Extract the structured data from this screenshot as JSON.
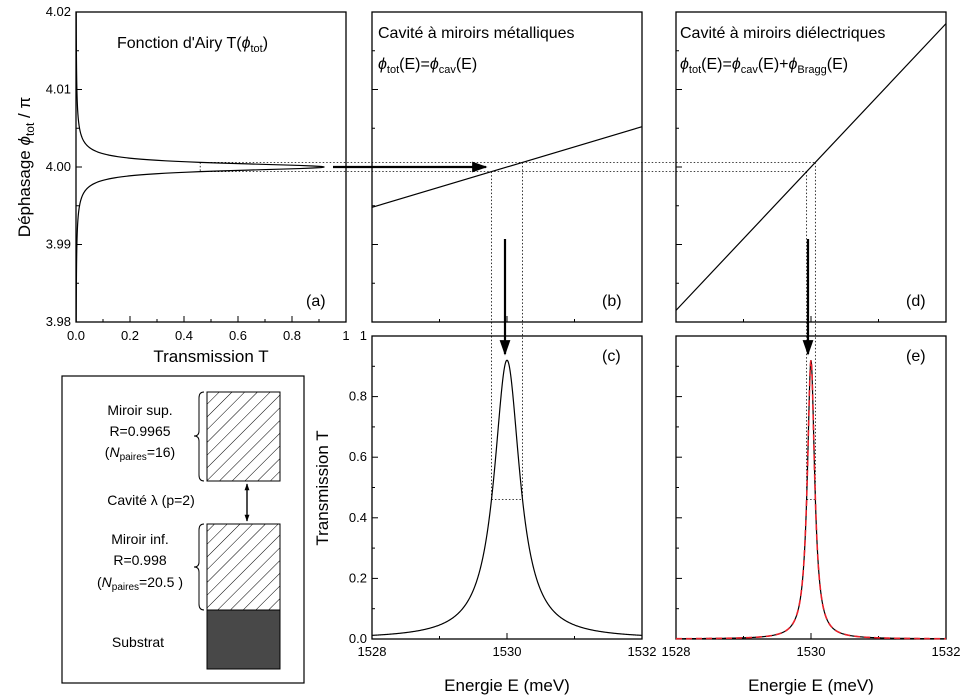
{
  "chart_data": [
    {
      "panel": "a",
      "type": "line",
      "title": "Fonction d'Airy T(ϕtot)",
      "xlabel": "Transmission T",
      "ylabel": "Déphasage ϕtot / π",
      "xlim": [
        0,
        1
      ],
      "ylim": [
        3.98,
        4.02
      ],
      "xticks": [
        "0.0",
        "0.2",
        "0.4",
        "0.6",
        "0.8",
        "1"
      ],
      "yticks": [
        "3.98",
        "3.99",
        "4.00",
        "4.01",
        "4.02"
      ],
      "series": [
        {
          "name": "T(ϕtot)",
          "peak": {
            "phi_over_pi": 4.0,
            "T": 0.92
          },
          "half_width_phi_over_pi": 0.0006
        }
      ]
    },
    {
      "panel": "b",
      "type": "line",
      "title": "Cavité à miroirs métalliques",
      "formula": "ϕtot(E)=ϕcav(E)",
      "xlim": [
        1528,
        1532
      ],
      "ylim": [
        3.98,
        4.02
      ],
      "series": [
        {
          "name": "ϕtot(E)",
          "x": [
            1528,
            1532
          ],
          "y": [
            3.9948,
            4.0052
          ]
        }
      ]
    },
    {
      "panel": "c",
      "type": "line",
      "xlabel": "Energie E (meV)",
      "ylabel": "Transmission T",
      "xlim": [
        1528,
        1532
      ],
      "ylim": [
        0,
        1
      ],
      "xticks": [
        "1528",
        "1530",
        "1532"
      ],
      "yticks": [
        "0.0",
        "0.2",
        "0.4",
        "0.6",
        "0.8",
        "1"
      ],
      "series": [
        {
          "name": "T(E)",
          "peak_x": 1530,
          "peak_T": 0.92,
          "fwhm_meV": 0.46
        }
      ]
    },
    {
      "panel": "d",
      "type": "line",
      "title": "Cavité à miroirs diélectriques",
      "formula": "ϕtot(E)=ϕcav(E)+ϕBragg(E)",
      "xlim": [
        1528,
        1532
      ],
      "ylim": [
        3.98,
        4.02
      ],
      "series": [
        {
          "name": "ϕtot(E)",
          "x": [
            1528,
            1532
          ],
          "y": [
            3.9815,
            4.0185
          ]
        }
      ]
    },
    {
      "panel": "e",
      "type": "line",
      "xlabel": "Energie E (meV)",
      "xlim": [
        1528,
        1532
      ],
      "ylim": [
        0,
        1
      ],
      "xticks": [
        "1528",
        "1530",
        "1532"
      ],
      "series": [
        {
          "name": "T(E)",
          "peak_x": 1530,
          "peak_T": 0.92,
          "fwhm_meV": 0.13,
          "color": "#000000"
        },
        {
          "name": "fit",
          "peak_x": 1530,
          "peak_T": 0.92,
          "fwhm_meV": 0.13,
          "color": "#e8202a",
          "style": "dashed"
        }
      ]
    }
  ],
  "labels": {
    "pa": "(a)",
    "pb": "(b)",
    "pc": "(c)",
    "pd": "(d)",
    "pe": "(e)",
    "airy_title": "Fonction d'Airy T(",
    "airy_phi": "ϕ",
    "airy_sub": "tot",
    "airy_close": ")",
    "b_title": "Cavité à miroirs métalliques",
    "b_formula_phi": "ϕ",
    "b_formula_sub1": "tot",
    "b_formula_mid": "(E)=",
    "b_formula_phi2": "ϕ",
    "b_formula_sub2": "cav",
    "b_formula_end": "(E)",
    "d_title": "Cavité à miroirs diélectriques",
    "d_formula_sub3": "Bragg",
    "d_formula_plus": "(E)+",
    "ya_lab1": "Déphasage ",
    "ya_phi": "ϕ",
    "ya_sub": "tot",
    "ya_rest": " / π",
    "xa_lab": "Transmission T",
    "yc_lab": "Transmission T",
    "xc_lab": "Energie E (meV)",
    "xe_lab": "Energie E (meV)"
  },
  "diagram": {
    "top_mirror": [
      "Miroir sup.",
      "R=0.9965"
    ],
    "top_pairs": {
      "open": "(",
      "N": "N",
      "sub": "paires",
      "val": "=16)"
    },
    "cavity": "Cavité λ (p=2)",
    "bottom_mirror": [
      "Miroir inf.",
      "R=0.998"
    ],
    "bottom_pairs": {
      "open": "(",
      "N": "N",
      "sub": "paires",
      "val": "=20.5 )"
    },
    "substrate": "Substrat",
    "substrate_color": "#484848"
  }
}
